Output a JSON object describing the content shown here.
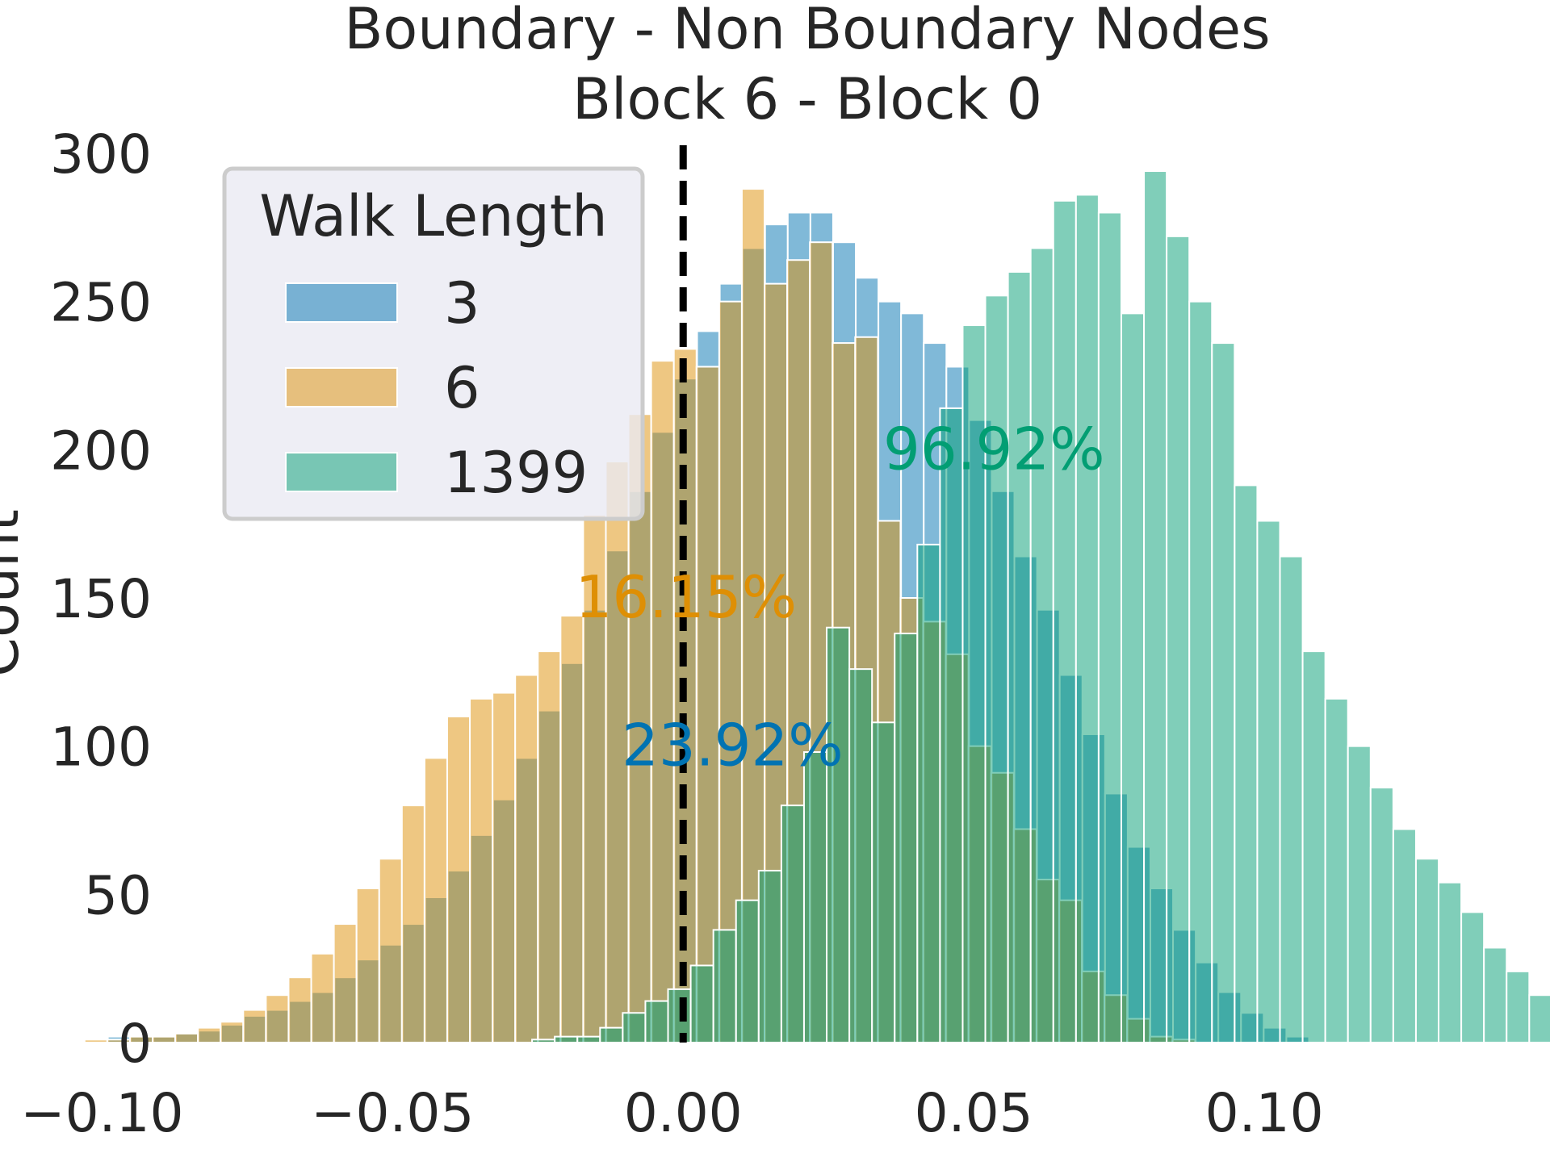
{
  "chart_data": {
    "type": "histogram",
    "title": "Boundary - Non Boundary Nodes",
    "subtitle": "Block 6 - Block 0",
    "xlabel": "",
    "ylabel": "Count",
    "xlim": [
      -0.112,
      0.145
    ],
    "ylim": [
      0,
      300
    ],
    "xticks": [
      "−0.10",
      "−0.05",
      "0.00",
      "0.05",
      "0.10"
    ],
    "xtick_values": [
      -0.1,
      -0.05,
      0.0,
      0.05,
      0.1
    ],
    "yticks": [
      "0",
      "50",
      "100",
      "150",
      "200",
      "250",
      "300"
    ],
    "ytick_values": [
      0,
      50,
      100,
      150,
      200,
      250,
      300
    ],
    "grid": false,
    "reference_line": {
      "x": 0.0,
      "style": "dashed",
      "color": "#000000"
    },
    "legend": {
      "title": "Walk Length",
      "placement": "top-left",
      "entries": [
        "3",
        "6",
        "1399"
      ]
    },
    "series": [
      {
        "name": "3",
        "color": "#0173b2",
        "annotation": "23.92%",
        "bin_start": -0.099,
        "bin_width": 0.0039,
        "values": [
          2,
          2,
          2,
          3,
          4,
          6,
          9,
          11,
          14,
          17,
          22,
          28,
          33,
          40,
          49,
          58,
          70,
          82,
          96,
          112,
          128,
          146,
          166,
          186,
          206,
          224,
          240,
          256,
          268,
          276,
          280,
          280,
          270,
          258,
          250,
          246,
          236,
          228,
          210,
          186,
          164,
          146,
          124,
          104,
          84,
          66,
          52,
          38,
          27,
          17,
          10,
          5,
          2
        ]
      },
      {
        "name": "6",
        "color": "#de8f05",
        "annotation": "16.15%",
        "bin_start": -0.103,
        "bin_width": 0.0039,
        "values": [
          1,
          1,
          2,
          2,
          3,
          5,
          7,
          11,
          16,
          22,
          30,
          40,
          52,
          62,
          80,
          96,
          110,
          116,
          118,
          124,
          132,
          144,
          178,
          196,
          212,
          230,
          234,
          228,
          250,
          288,
          256,
          264,
          270,
          236,
          238,
          176,
          150,
          142,
          131,
          100,
          91,
          72,
          55,
          48,
          24,
          16,
          8,
          2,
          1
        ]
      },
      {
        "name": "1399",
        "color": "#029e73",
        "annotation": "96.92%",
        "bin_start": -0.026,
        "bin_width": 0.0039,
        "values": [
          1,
          2,
          2,
          5,
          10,
          14,
          18,
          26,
          38,
          48,
          58,
          80,
          98,
          140,
          126,
          108,
          138,
          168,
          214,
          242,
          252,
          260,
          268,
          284,
          286,
          280,
          246,
          294,
          272,
          250,
          236,
          188,
          176,
          164,
          132,
          116,
          100,
          86,
          72,
          62,
          54,
          44,
          32,
          24,
          16,
          12,
          8,
          6,
          4,
          2,
          1
        ]
      }
    ]
  }
}
